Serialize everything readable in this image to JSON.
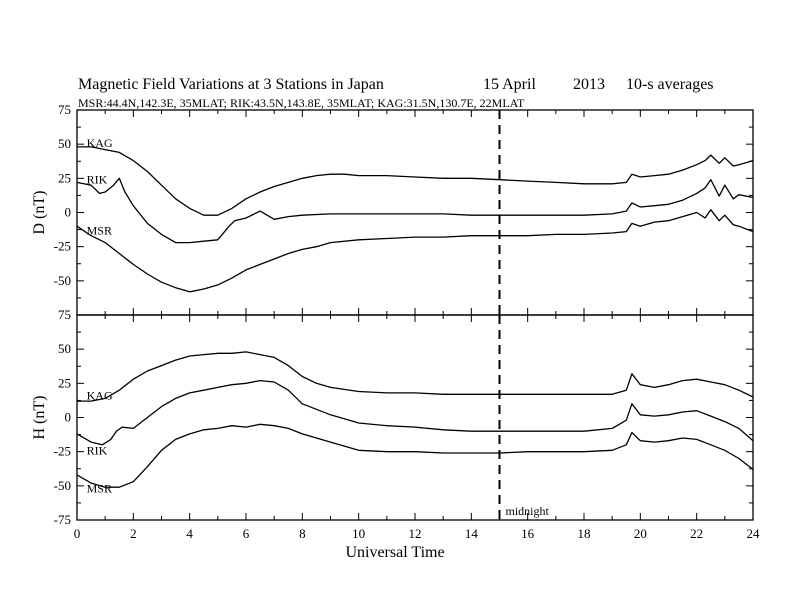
{
  "title": "Magnetic Field Variations at 3 Stations in Japan",
  "date": "15  April",
  "year": "2013",
  "averaging": "10-s averages",
  "stations_line": "MSR:44.4N,142.3E, 35MLAT;  RIK:43.5N,143.8E, 35MLAT;  KAG:31.5N,130.7E, 22MLAT",
  "colors": {
    "line": "#000000",
    "background": "#ffffff"
  },
  "chart_data": [
    {
      "type": "line",
      "panel": "top",
      "ylabel": "D (nT)",
      "xlabel": "",
      "xlim": [
        0,
        24
      ],
      "ylim": [
        -75,
        75
      ],
      "yticks": [
        "-75",
        "-50",
        "-25",
        "0",
        "25",
        "50",
        "75"
      ],
      "marker": {
        "x": 15,
        "label": ""
      },
      "series": [
        {
          "name": "KAG",
          "label_at": [
            0.2,
            51
          ],
          "x": [
            0,
            0.5,
            1,
            1.5,
            2,
            2.5,
            3,
            3.5,
            4,
            4.5,
            5,
            5.5,
            6,
            6.5,
            7,
            7.5,
            8,
            8.5,
            9,
            9.5,
            10,
            11,
            12,
            13,
            14,
            15,
            16,
            17,
            18,
            19,
            19.5,
            19.7,
            20,
            20.5,
            21,
            21.5,
            22,
            22.3,
            22.5,
            22.8,
            23,
            23.3,
            23.5,
            24
          ],
          "y": [
            48,
            48,
            46,
            44,
            38,
            30,
            20,
            10,
            3,
            -2,
            -2,
            3,
            10,
            15,
            19,
            22,
            25,
            27,
            28,
            28,
            27,
            27,
            26,
            25,
            25,
            24,
            23,
            22,
            21,
            21,
            22,
            28,
            26,
            27,
            28,
            31,
            35,
            38,
            42,
            36,
            40,
            34,
            35,
            38
          ]
        },
        {
          "name": "RIK",
          "label_at": [
            0.2,
            24
          ],
          "x": [
            0,
            0.5,
            0.8,
            1,
            1.3,
            1.5,
            1.7,
            2,
            2.5,
            3,
            3.5,
            4,
            4.5,
            5,
            5.4,
            5.6,
            6,
            6.5,
            7,
            7.5,
            8,
            9,
            10,
            11,
            12,
            13,
            14,
            15,
            16,
            17,
            18,
            19,
            19.5,
            19.7,
            20,
            20.5,
            21,
            21.5,
            22,
            22.3,
            22.5,
            22.8,
            23,
            23.3,
            23.5,
            24
          ],
          "y": [
            22,
            20,
            14,
            15,
            20,
            25,
            15,
            5,
            -8,
            -16,
            -22,
            -22,
            -21,
            -20,
            -10,
            -6,
            -4,
            1,
            -5,
            -3,
            -2,
            -1,
            -1,
            -1,
            -1,
            -1,
            -2,
            -2,
            -2,
            -2,
            -2,
            -1,
            1,
            7,
            4,
            5,
            6,
            9,
            14,
            18,
            24,
            12,
            20,
            10,
            13,
            11
          ]
        },
        {
          "name": "MSR",
          "label_at": [
            0.2,
            -13
          ],
          "x": [
            0,
            0.5,
            1,
            1.5,
            2,
            2.5,
            3,
            3.5,
            4,
            4.5,
            5,
            5.5,
            6,
            6.5,
            7,
            7.5,
            8,
            8.5,
            9,
            10,
            11,
            12,
            13,
            14,
            15,
            16,
            17,
            18,
            19,
            19.5,
            19.7,
            20,
            20.5,
            21,
            21.5,
            22,
            22.3,
            22.5,
            22.8,
            23,
            23.3,
            23.5,
            24
          ],
          "y": [
            -10,
            -17,
            -22,
            -30,
            -38,
            -45,
            -51,
            -55,
            -58,
            -56,
            -53,
            -48,
            -42,
            -38,
            -34,
            -30,
            -27,
            -25,
            -22,
            -20,
            -19,
            -18,
            -18,
            -17,
            -17,
            -17,
            -16,
            -16,
            -15,
            -14,
            -8,
            -10,
            -7,
            -6,
            -3,
            0,
            -4,
            2,
            -6,
            -2,
            -9,
            -10,
            -14
          ]
        }
      ]
    },
    {
      "type": "line",
      "panel": "bottom",
      "ylabel": "H (nT)",
      "xlabel": "Universal Time",
      "xlim": [
        0,
        24
      ],
      "ylim": [
        -75,
        75
      ],
      "yticks": [
        "-75",
        "-50",
        "-25",
        "0",
        "25",
        "50",
        "75"
      ],
      "xticks": [
        "0",
        "2",
        "4",
        "6",
        "8",
        "10",
        "12",
        "14",
        "16",
        "18",
        "20",
        "22",
        "24"
      ],
      "marker": {
        "x": 15,
        "label": "midnight"
      },
      "series": [
        {
          "name": "KAG",
          "label_at": [
            0.2,
            16
          ],
          "x": [
            0,
            0.5,
            1,
            1.5,
            2,
            2.5,
            3,
            3.5,
            4,
            4.5,
            5,
            5.5,
            6,
            6.5,
            7,
            7.5,
            8,
            8.5,
            9,
            10,
            11,
            12,
            13,
            14,
            15,
            16,
            17,
            18,
            19,
            19.5,
            19.7,
            20,
            20.5,
            21,
            21.5,
            22,
            22.5,
            23,
            23.5,
            24
          ],
          "y": [
            12,
            12,
            14,
            20,
            28,
            34,
            38,
            42,
            45,
            46,
            47,
            47,
            48,
            46,
            44,
            38,
            30,
            25,
            22,
            19,
            18,
            18,
            17,
            17,
            17,
            17,
            17,
            17,
            17,
            20,
            32,
            24,
            22,
            24,
            27,
            28,
            26,
            24,
            20,
            15
          ]
        },
        {
          "name": "RIK",
          "label_at": [
            0.2,
            -24
          ],
          "x": [
            0,
            0.5,
            0.9,
            1.2,
            1.4,
            1.6,
            2,
            2.5,
            3,
            3.5,
            4,
            4.5,
            5,
            5.5,
            6,
            6.5,
            7,
            7.5,
            8,
            9,
            10,
            11,
            12,
            13,
            14,
            15,
            16,
            17,
            18,
            19,
            19.5,
            19.7,
            20,
            20.5,
            21,
            21.5,
            22,
            22.5,
            23,
            23.5,
            24
          ],
          "y": [
            -12,
            -18,
            -20,
            -16,
            -10,
            -7,
            -8,
            0,
            8,
            14,
            18,
            20,
            22,
            24,
            25,
            27,
            26,
            20,
            10,
            2,
            -4,
            -6,
            -7,
            -9,
            -10,
            -10,
            -10,
            -10,
            -10,
            -8,
            -2,
            10,
            2,
            1,
            2,
            4,
            5,
            1,
            -3,
            -8,
            -17
          ]
        },
        {
          "name": "MSR",
          "label_at": [
            0.2,
            -52
          ],
          "x": [
            0,
            0.5,
            1,
            1.5,
            2,
            2.5,
            3,
            3.5,
            4,
            4.5,
            5,
            5.5,
            6,
            6.5,
            7,
            7.5,
            8,
            9,
            10,
            11,
            12,
            13,
            14,
            15,
            16,
            17,
            18,
            19,
            19.5,
            19.7,
            20,
            20.5,
            21,
            21.5,
            22,
            22.5,
            23,
            23.5,
            24
          ],
          "y": [
            -42,
            -48,
            -51,
            -51,
            -47,
            -36,
            -24,
            -16,
            -12,
            -9,
            -8,
            -6,
            -7,
            -5,
            -6,
            -8,
            -12,
            -18,
            -24,
            -25,
            -25,
            -26,
            -26,
            -26,
            -25,
            -25,
            -25,
            -24,
            -20,
            -11,
            -17,
            -18,
            -17,
            -15,
            -16,
            -20,
            -24,
            -30,
            -38
          ]
        }
      ]
    }
  ]
}
